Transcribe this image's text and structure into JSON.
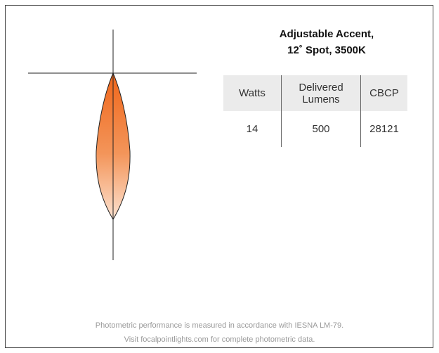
{
  "header": {
    "title": [
      "Adjustable Accent,",
      "12˚ Spot, 3500K"
    ]
  },
  "table": {
    "columns": [
      "Watts",
      "Delivered Lumens",
      "CBCP"
    ],
    "rows": [
      [
        14,
        500,
        28121
      ]
    ]
  },
  "footer": {
    "lines": [
      "Photometric performance is measured in accordance with IESNA LM-79.",
      "Visit focalpointlights.com for complete photometric data."
    ]
  }
}
